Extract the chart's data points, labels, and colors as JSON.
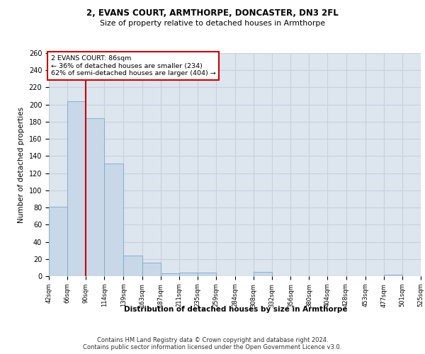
{
  "title1": "2, EVANS COURT, ARMTHORPE, DONCASTER, DN3 2FL",
  "title2": "Size of property relative to detached houses in Armthorpe",
  "xlabel": "Distribution of detached houses by size in Armthorpe",
  "ylabel": "Number of detached properties",
  "bar_color": "#c8d8e8",
  "bar_edge_color": "#7aaac8",
  "grid_color": "#c8d0dc",
  "background_color": "#dde5ef",
  "bins": [
    42,
    66,
    90,
    114,
    139,
    163,
    187,
    211,
    235,
    259,
    284,
    308,
    332,
    356,
    380,
    404,
    428,
    453,
    477,
    501,
    525
  ],
  "counts": [
    81,
    204,
    184,
    131,
    24,
    16,
    3,
    4,
    4,
    0,
    0,
    5,
    0,
    0,
    0,
    0,
    0,
    0,
    2,
    0
  ],
  "tick_labels": [
    "42sqm",
    "66sqm",
    "90sqm",
    "114sqm",
    "139sqm",
    "163sqm",
    "187sqm",
    "211sqm",
    "235sqm",
    "259sqm",
    "284sqm",
    "308sqm",
    "332sqm",
    "356sqm",
    "380sqm",
    "404sqm",
    "428sqm",
    "453sqm",
    "477sqm",
    "501sqm",
    "525sqm"
  ],
  "property_label": "2 EVANS COURT: 86sqm",
  "annotation_line1": "← 36% of detached houses are smaller (234)",
  "annotation_line2": "62% of semi-detached houses are larger (404) →",
  "vline_color": "#cc0000",
  "annotation_edge_color": "#cc0000",
  "footer_line1": "Contains HM Land Registry data © Crown copyright and database right 2024.",
  "footer_line2": "Contains public sector information licensed under the Open Government Licence v3.0.",
  "ylim": [
    0,
    260
  ],
  "yticks": [
    0,
    20,
    40,
    60,
    80,
    100,
    120,
    140,
    160,
    180,
    200,
    220,
    240,
    260
  ]
}
